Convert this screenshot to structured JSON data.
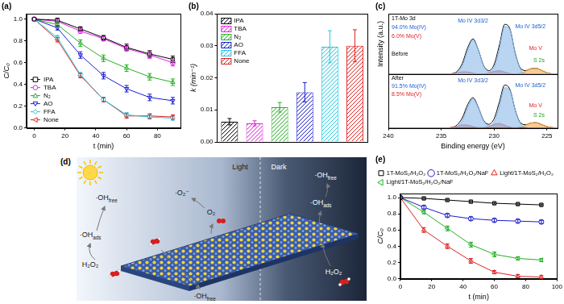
{
  "chart_data": [
    {
      "type": "line",
      "title": "(a)",
      "xlabel": "t (min)",
      "ylabel": "C/C₀",
      "x": [
        0,
        15,
        30,
        45,
        60,
        75,
        90
      ],
      "xlim": [
        -5,
        95
      ],
      "xticks": [
        0,
        20,
        40,
        60,
        80
      ],
      "ylim": [
        0,
        1.05
      ],
      "yticks": [
        {
          "value": 0,
          "label": "0.0"
        },
        0.2,
        0.4,
        0.6,
        0.8,
        {
          "value": 1,
          "label": "1.0"
        }
      ],
      "grid": false,
      "legend": "bottom-left",
      "series": [
        {
          "name": "IPA",
          "color": "#000000",
          "marker": "square",
          "values": [
            1,
            0.99,
            0.91,
            0.83,
            0.74,
            0.68,
            0.63
          ],
          "errors": [
            0,
            0.02,
            0.02,
            0.02,
            0.03,
            0.03,
            0.03
          ]
        },
        {
          "name": "TBA",
          "color": "#e020e0",
          "marker": "circle",
          "values": [
            1,
            0.98,
            0.89,
            0.82,
            0.73,
            0.67,
            0.6
          ],
          "errors": [
            0,
            0.02,
            0.02,
            0.02,
            0.02,
            0.03,
            0.03
          ]
        },
        {
          "name": "N₂",
          "color": "#20b020",
          "marker": "triangle",
          "values": [
            1,
            0.95,
            0.78,
            0.64,
            0.55,
            0.47,
            0.42
          ],
          "errors": [
            0,
            0.02,
            0.03,
            0.03,
            0.03,
            0.03,
            0.03
          ]
        },
        {
          "name": "AO",
          "color": "#1a1ad0",
          "marker": "triangle-down",
          "values": [
            1,
            0.92,
            0.67,
            0.48,
            0.36,
            0.28,
            0.25
          ],
          "errors": [
            0,
            0.02,
            0.03,
            0.03,
            0.03,
            0.03,
            0.03
          ]
        },
        {
          "name": "FFA",
          "color": "#20c8e0",
          "marker": "diamond",
          "values": [
            1,
            0.83,
            0.49,
            0.26,
            0.12,
            0.1,
            0.09
          ],
          "errors": [
            0,
            0.02,
            0.02,
            0.02,
            0.02,
            0.02,
            0.02
          ]
        },
        {
          "name": "None",
          "color": "#e02020",
          "marker": "triangle-left",
          "values": [
            1,
            0.81,
            0.48,
            0.26,
            0.11,
            0.11,
            0.1
          ],
          "errors": [
            0,
            0.02,
            0.02,
            0.02,
            0.02,
            0.02,
            0.02
          ]
        }
      ]
    },
    {
      "type": "bar",
      "title": "(b)",
      "ylabel": "k (min⁻¹)",
      "categories": [
        "IPA",
        "TBA",
        "N₂",
        "AO",
        "FFA",
        "None"
      ],
      "values": [
        0.0063,
        0.0058,
        0.0108,
        0.0155,
        0.0297,
        0.03
      ],
      "errors": [
        0.001,
        0.0008,
        0.0015,
        0.003,
        0.005,
        0.005
      ],
      "colors": [
        "#000000",
        "#e020e0",
        "#20b020",
        "#1a1ad0",
        "#20c8e0",
        "#e02020"
      ],
      "ylim": [
        0,
        0.04
      ],
      "yticks": [
        {
          "value": 0,
          "label": "0.00"
        },
        0.01,
        0.02,
        0.03,
        0.04
      ],
      "tick_labels": "y",
      "grid": false,
      "legend": "top-left"
    },
    {
      "type": "line",
      "title": "(c)",
      "ylabel": "Intensity (a.u.)",
      "x": [
        240,
        239.5,
        239,
        238.5,
        238,
        237.5,
        237,
        236.5,
        236,
        235.5,
        235,
        234.5,
        234,
        233.5,
        233,
        232.5,
        232,
        231.5,
        231,
        230.5,
        230,
        229.5,
        229,
        228.5,
        228,
        227.5,
        227,
        226.5,
        226,
        225.5,
        225,
        224.5,
        224
      ],
      "xlim": [
        240,
        224
      ],
      "ylim": [
        0,
        1.2
      ],
      "tick_labels": false,
      "series": [
        {
          "type": "area",
          "color": "#7fb2e5",
          "values": [
            0,
            0,
            0,
            0,
            0,
            0,
            0,
            0,
            0,
            0,
            0,
            0,
            0,
            0.03,
            0.17,
            0.48,
            0.68,
            0.48,
            0.17,
            0.05,
            0.135,
            0.506,
            0.946,
            0.882,
            0.411,
            0.095,
            0.011,
            0,
            0,
            0,
            0,
            0,
            0
          ]
        },
        {
          "type": "area",
          "color": "#e06666",
          "values": [
            0,
            0,
            0,
            0,
            0,
            0,
            0,
            0,
            0,
            0,
            0,
            0,
            0.007,
            0.025,
            0.047,
            0.044,
            0.021,
            0.005,
            0.005,
            0.023,
            0.056,
            0.07,
            0.042,
            0.013,
            0.002,
            0,
            0,
            0,
            0,
            0,
            0,
            0,
            0
          ]
        },
        {
          "type": "area",
          "color": "#f0a040",
          "values": [
            0,
            0,
            0,
            0,
            0,
            0,
            0,
            0,
            0,
            0,
            0,
            0,
            0,
            0,
            0,
            0,
            0,
            0,
            0,
            0,
            0,
            0,
            0,
            0,
            0.004,
            0.021,
            0.062,
            0.109,
            0.115,
            0.073,
            0.028,
            0.006,
            0
          ]
        },
        {
          "type": "line",
          "color": "#000000",
          "values": [
            0,
            0,
            0,
            0,
            0,
            0,
            0,
            0,
            0,
            0,
            0,
            0,
            0.01,
            0.055,
            0.217,
            0.524,
            0.701,
            0.485,
            0.175,
            0.071,
            0.191,
            0.576,
            0.988,
            0.895,
            0.417,
            0.116,
            0.073,
            0.109,
            0.115,
            0.073,
            0.028,
            0.006,
            0
          ]
        }
      ],
      "annotations": [
        {
          "text": "1T-Mo 3d",
          "color": "#000000"
        },
        {
          "text": "94.0% Mo(IV)",
          "color": "#1a5fd0"
        },
        {
          "text": "6.0% Mo(V)",
          "color": "#e02020"
        },
        {
          "text": "Mo IV 3d3/2",
          "color": "#1a5fd0"
        },
        {
          "text": "Mo IV 3d5/2",
          "color": "#1a5fd0"
        },
        {
          "text": "Mo V",
          "color": "#e02020"
        },
        {
          "text": "S 2s",
          "color": "#20a020"
        },
        {
          "text": "Before",
          "color": "#000000"
        }
      ]
    },
    {
      "type": "line",
      "xlabel": "Binding energy (eV)",
      "x": [
        240,
        239.5,
        239,
        238.5,
        238,
        237.5,
        237,
        236.5,
        236,
        235.5,
        235,
        234.5,
        234,
        233.5,
        233,
        232.5,
        232,
        231.5,
        231,
        230.5,
        230,
        229.5,
        229,
        228.5,
        228,
        227.5,
        227,
        226.5,
        226,
        225.5,
        225,
        224.5,
        224
      ],
      "xlim": [
        240,
        224
      ],
      "xticks": [
        240,
        235,
        230,
        225
      ],
      "ylim": [
        0,
        1.2
      ],
      "tick_labels": "x",
      "series": [
        {
          "type": "area",
          "color": "#7fb2e5",
          "values": [
            0,
            0,
            0,
            0,
            0,
            0,
            0,
            0,
            0,
            0,
            0,
            0,
            0,
            0.029,
            0.162,
            0.456,
            0.646,
            0.456,
            0.162,
            0.048,
            0.128,
            0.481,
            0.899,
            0.838,
            0.39,
            0.09,
            0.01,
            0,
            0,
            0,
            0,
            0,
            0
          ]
        },
        {
          "type": "area",
          "color": "#e06666",
          "values": [
            0,
            0,
            0,
            0,
            0,
            0,
            0,
            0,
            0,
            0,
            0,
            0,
            0.01,
            0.035,
            0.066,
            0.062,
            0.029,
            0.007,
            0.007,
            0.032,
            0.078,
            0.098,
            0.059,
            0.018,
            0.003,
            0,
            0,
            0,
            0,
            0,
            0,
            0,
            0
          ]
        },
        {
          "type": "area",
          "color": "#f0a040",
          "values": [
            0,
            0,
            0,
            0,
            0,
            0,
            0,
            0,
            0,
            0,
            0,
            0,
            0,
            0,
            0,
            0,
            0,
            0,
            0,
            0,
            0,
            0,
            0,
            0,
            0.004,
            0.021,
            0.062,
            0.109,
            0.115,
            0.073,
            0.028,
            0.006,
            0
          ]
        },
        {
          "type": "line",
          "color": "#000000",
          "values": [
            0,
            0,
            0,
            0,
            0,
            0,
            0,
            0,
            0,
            0,
            0,
            0,
            0.01,
            0.064,
            0.228,
            0.518,
            0.675,
            0.463,
            0.169,
            0.08,
            0.206,
            0.579,
            0.958,
            0.856,
            0.397,
            0.111,
            0.072,
            0.109,
            0.115,
            0.073,
            0.028,
            0.006,
            0
          ]
        }
      ],
      "annotations": [
        {
          "text": "After",
          "color": "#000000"
        },
        {
          "text": "91.5% Mo(IV)",
          "color": "#1a5fd0"
        },
        {
          "text": "8.5% Mo(V)",
          "color": "#e02020"
        },
        {
          "text": "Mo IV 3d3/2",
          "color": "#1a5fd0"
        },
        {
          "text": "Mo IV 3d5/2",
          "color": "#1a5fd0"
        },
        {
          "text": "Mo V",
          "color": "#e02020"
        },
        {
          "text": "S 2s",
          "color": "#20a020"
        }
      ]
    },
    {
      "type": "line",
      "title": "(e)",
      "xlabel": "t (min)",
      "ylabel": "C/C₀",
      "x": [
        0,
        15,
        30,
        45,
        60,
        75,
        90
      ],
      "xlim": [
        0,
        100
      ],
      "xticks": [
        0,
        20,
        40,
        60,
        80,
        100
      ],
      "ylim": [
        0,
        1.05
      ],
      "yticks": [
        {
          "value": 0,
          "label": "0.0"
        },
        0.2,
        0.4,
        0.6,
        0.8,
        {
          "value": 1,
          "label": "1.0"
        }
      ],
      "grid": false,
      "legend": "top",
      "series": [
        {
          "name": "1T-MoS₂/H₂O₂",
          "color": "#000000",
          "marker": "square",
          "values": [
            1,
            0.99,
            0.97,
            0.95,
            0.93,
            0.92,
            0.91
          ],
          "errors": [
            0,
            0.01,
            0.01,
            0.01,
            0.01,
            0.01,
            0.01
          ]
        },
        {
          "name": "1T-MoS₂/H₂O₂/NaF",
          "color": "#1a1ad0",
          "marker": "circle",
          "values": [
            1,
            0.88,
            0.78,
            0.74,
            0.72,
            0.71,
            0.7
          ],
          "errors": [
            0,
            0.02,
            0.02,
            0.02,
            0.02,
            0.02,
            0.02
          ]
        },
        {
          "name": "Light/1T-MoS₂/H₂O₂",
          "color": "#e02020",
          "marker": "triangle",
          "values": [
            1,
            0.6,
            0.4,
            0.22,
            0.08,
            0.03,
            0.02
          ],
          "errors": [
            0,
            0.03,
            0.03,
            0.03,
            0.02,
            0.02,
            0.02
          ]
        },
        {
          "name": "Light/1T-MoS₂/H₂O₂/NaF",
          "color": "#20b020",
          "marker": "triangle-left",
          "values": [
            1,
            0.82,
            0.62,
            0.42,
            0.3,
            0.25,
            0.23
          ],
          "errors": [
            0,
            0.02,
            0.03,
            0.03,
            0.03,
            0.02,
            0.02
          ]
        }
      ]
    }
  ],
  "diagram": {
    "label": "(d)",
    "regions": [
      "Light",
      "Dark"
    ],
    "species": [
      {
        "text": "·OH",
        "sub": "free"
      },
      {
        "text": "·O₂⁻"
      },
      {
        "text": "O₂"
      },
      {
        "text": "·OH",
        "sub": "ads"
      },
      {
        "text": "H₂O₂"
      },
      {
        "text": "·OH",
        "sub": "free"
      },
      {
        "text": "·OH",
        "sub": "free"
      },
      {
        "text": "·OH",
        "sub": "ads"
      },
      {
        "text": "H₂O₂"
      }
    ]
  }
}
